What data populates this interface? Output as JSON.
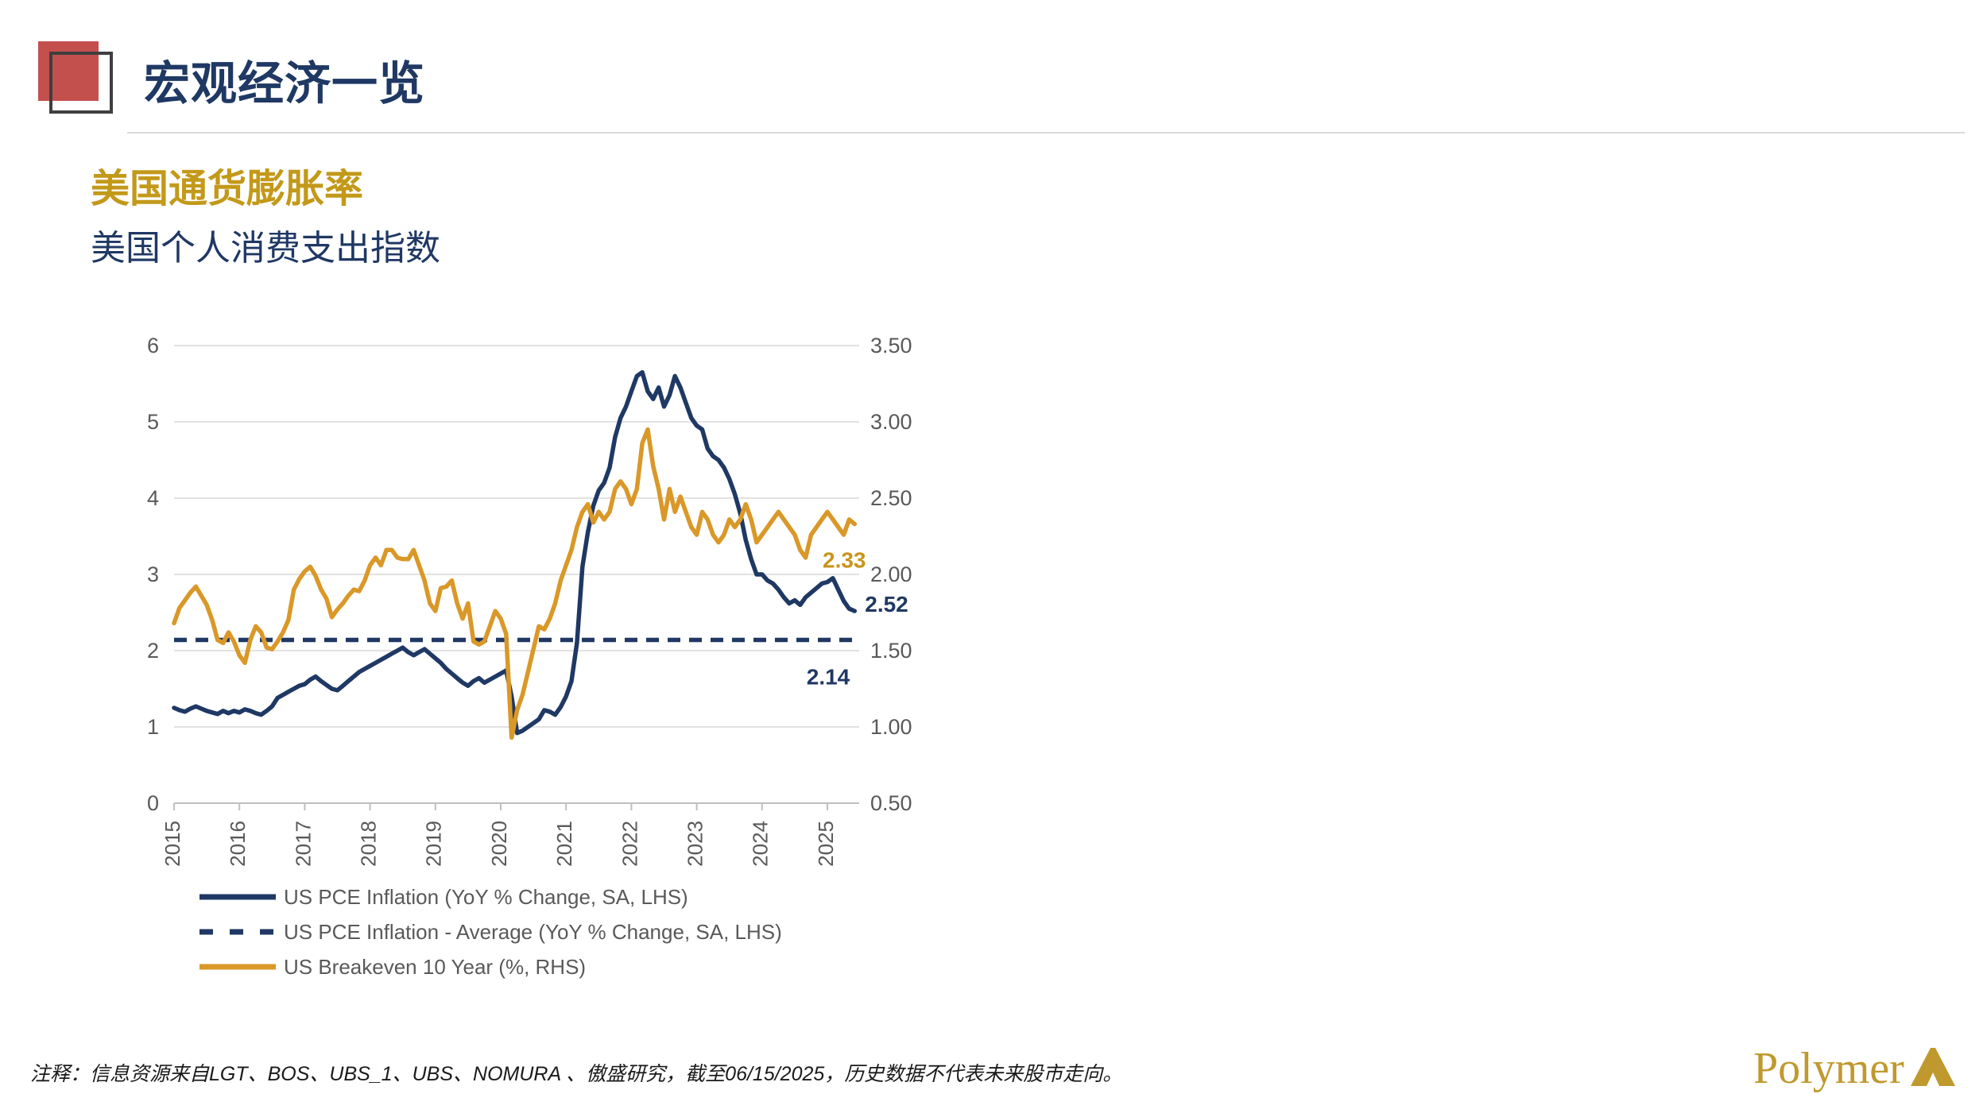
{
  "header": {
    "title": "宏观经济一览"
  },
  "section": {
    "heading": "美国通货膨胀率",
    "subheading": "美国个人消费支出指数"
  },
  "footnote": "注释：信息资源来自LGT、BOS、UBS_1、UBS、NOMURA 、傲盛研究，截至06/15/2025，历史数据不代表未来股市走向。",
  "logo": {
    "text": "Polymer"
  },
  "chart_data": {
    "type": "line",
    "title": "美国个人消费支出指数",
    "x_range": [
      "2015-01",
      "2025-06"
    ],
    "x_tick_labels": [
      "2015",
      "2016",
      "2017",
      "2018",
      "2019",
      "2020",
      "2021",
      "2022",
      "2023",
      "2024",
      "2025"
    ],
    "left_axis": {
      "ticks": [
        "0",
        "1",
        "2",
        "3",
        "4",
        "5",
        "6"
      ],
      "range": [
        0,
        6
      ]
    },
    "right_axis": {
      "ticks": [
        "0.50",
        "1.00",
        "1.50",
        "2.00",
        "2.50",
        "3.00",
        "3.50"
      ],
      "range": [
        0.5,
        3.5
      ]
    },
    "grid": true,
    "legend_position": "bottom-left",
    "colors": {
      "navy": "#1F3864",
      "gold": "#DA9828",
      "axis_text": "#595959",
      "gridline": "#D9D9D9",
      "axis_line": "#BFBFBF"
    },
    "series": [
      {
        "name": "US PCE Inflation (YoY % Change, SA, LHS)",
        "axis": "left",
        "style": "solid",
        "color": "#1F3864",
        "values": [
          1.25,
          1.22,
          1.2,
          1.24,
          1.27,
          1.24,
          1.21,
          1.19,
          1.17,
          1.21,
          1.18,
          1.21,
          1.19,
          1.23,
          1.21,
          1.18,
          1.16,
          1.21,
          1.27,
          1.38,
          1.42,
          1.46,
          1.5,
          1.54,
          1.56,
          1.62,
          1.66,
          1.6,
          1.55,
          1.5,
          1.48,
          1.54,
          1.6,
          1.66,
          1.72,
          1.76,
          1.8,
          1.84,
          1.88,
          1.92,
          1.96,
          2.0,
          2.04,
          1.98,
          1.94,
          1.98,
          2.02,
          1.96,
          1.9,
          1.84,
          1.76,
          1.7,
          1.64,
          1.58,
          1.54,
          1.6,
          1.64,
          1.58,
          1.62,
          1.66,
          1.7,
          1.74,
          1.4,
          0.92,
          0.95,
          1.0,
          1.05,
          1.1,
          1.22,
          1.2,
          1.16,
          1.26,
          1.4,
          1.6,
          2.1,
          3.1,
          3.55,
          3.9,
          4.1,
          4.2,
          4.4,
          4.8,
          5.05,
          5.2,
          5.4,
          5.6,
          5.65,
          5.4,
          5.3,
          5.45,
          5.2,
          5.35,
          5.6,
          5.45,
          5.25,
          5.05,
          4.95,
          4.9,
          4.65,
          4.55,
          4.5,
          4.4,
          4.25,
          4.05,
          3.8,
          3.45,
          3.2,
          3.0,
          3.0,
          2.92,
          2.88,
          2.8,
          2.7,
          2.62,
          2.66,
          2.6,
          2.7,
          2.76,
          2.82,
          2.88,
          2.9,
          2.95,
          2.8,
          2.65,
          2.55,
          2.52
        ],
        "end_label": "2.52"
      },
      {
        "name": "US PCE Inflation - Average (YoY % Change, SA, LHS)",
        "axis": "left",
        "style": "dashed",
        "color": "#1F3864",
        "constant": 2.14,
        "end_label": "2.14"
      },
      {
        "name": "US Breakeven 10 Year (%, RHS)",
        "axis": "right",
        "style": "solid",
        "color": "#DA9828",
        "values": [
          1.68,
          1.78,
          1.83,
          1.88,
          1.92,
          1.86,
          1.8,
          1.7,
          1.57,
          1.55,
          1.62,
          1.56,
          1.47,
          1.42,
          1.57,
          1.66,
          1.62,
          1.52,
          1.51,
          1.56,
          1.62,
          1.7,
          1.9,
          1.97,
          2.02,
          2.05,
          1.99,
          1.9,
          1.84,
          1.72,
          1.77,
          1.81,
          1.86,
          1.9,
          1.89,
          1.96,
          2.06,
          2.11,
          2.06,
          2.16,
          2.16,
          2.11,
          2.1,
          2.1,
          2.16,
          2.06,
          1.96,
          1.81,
          1.76,
          1.91,
          1.92,
          1.96,
          1.81,
          1.71,
          1.81,
          1.56,
          1.54,
          1.56,
          1.66,
          1.76,
          1.71,
          1.61,
          0.93,
          1.11,
          1.21,
          1.36,
          1.51,
          1.66,
          1.64,
          1.71,
          1.81,
          1.96,
          2.06,
          2.16,
          2.31,
          2.41,
          2.46,
          2.34,
          2.41,
          2.36,
          2.41,
          2.56,
          2.61,
          2.56,
          2.46,
          2.56,
          2.86,
          2.95,
          2.71,
          2.56,
          2.36,
          2.56,
          2.41,
          2.51,
          2.41,
          2.31,
          2.26,
          2.41,
          2.36,
          2.26,
          2.21,
          2.26,
          2.36,
          2.31,
          2.36,
          2.46,
          2.36,
          2.21,
          2.26,
          2.31,
          2.36,
          2.41,
          2.36,
          2.31,
          2.26,
          2.16,
          2.11,
          2.26,
          2.31,
          2.36,
          2.41,
          2.36,
          2.31,
          2.26,
          2.36,
          2.33
        ],
        "end_label": "2.33"
      }
    ],
    "annotations": [
      {
        "text": "2.33",
        "color": "#C9941C"
      },
      {
        "text": "2.52",
        "color": "#1F3864"
      },
      {
        "text": "2.14",
        "color": "#1F3864"
      }
    ]
  }
}
